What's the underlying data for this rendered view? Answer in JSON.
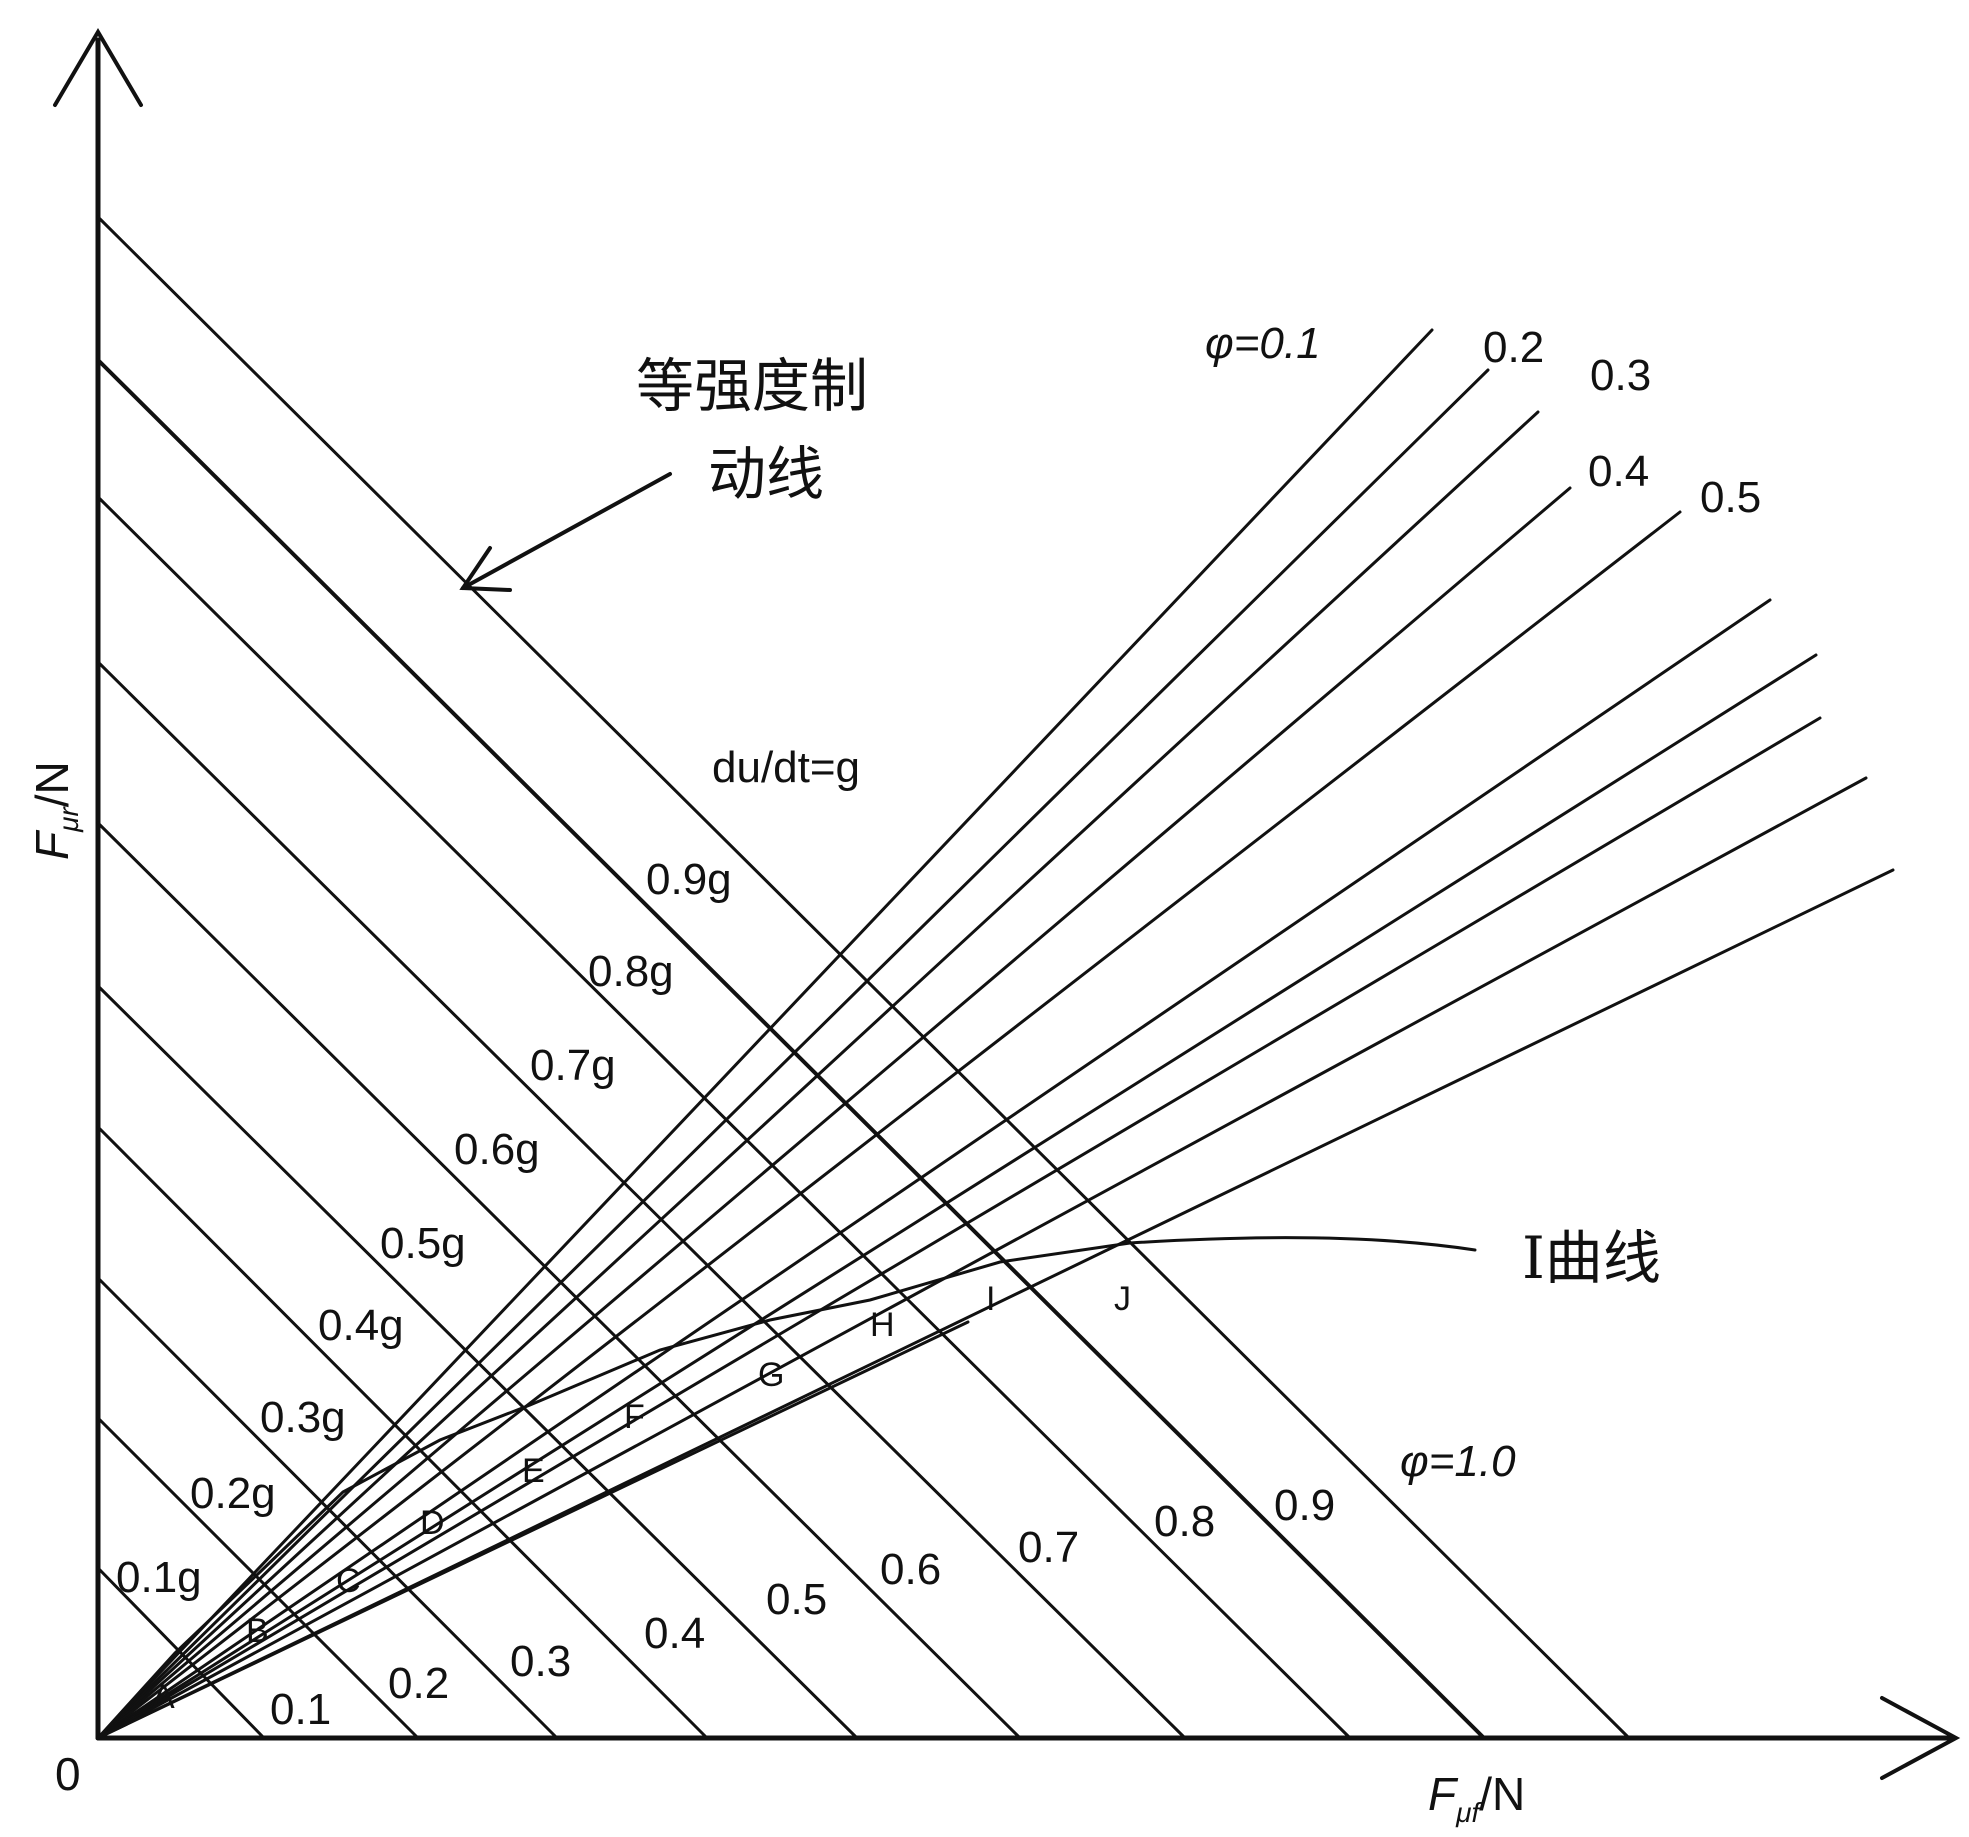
{
  "axes": {
    "origin_label": "0",
    "y_label": {
      "main": "F",
      "sub": "μr",
      "unit": "/N"
    },
    "x_label": {
      "main": "F",
      "sub": "μf",
      "unit": "/N"
    }
  },
  "decel_lines": {
    "left_labels": [
      "0.1g",
      "0.2g",
      "0.3g",
      "0.4g",
      "0.5g",
      "0.6g",
      "0.7g",
      "0.8g",
      "0.9g",
      "du/dt=g"
    ],
    "bottom_labels": [
      "0.1",
      "0.2",
      "0.3",
      "0.4",
      "0.5",
      "0.6",
      "0.7",
      "0.8",
      "0.9",
      "φ=1.0"
    ]
  },
  "beta_lines": {
    "labels": [
      "φ=0.1",
      "0.2",
      "0.3",
      "0.4",
      "0.5"
    ]
  },
  "i_curve": {
    "label": "I曲线",
    "points": [
      "A",
      "B",
      "C",
      "D",
      "E",
      "F",
      "G",
      "H",
      "I",
      "J"
    ]
  },
  "annotation": {
    "line1": "等强度制",
    "line2": "动线"
  },
  "colors": {
    "ink": "#111111",
    "background": "#ffffff"
  }
}
